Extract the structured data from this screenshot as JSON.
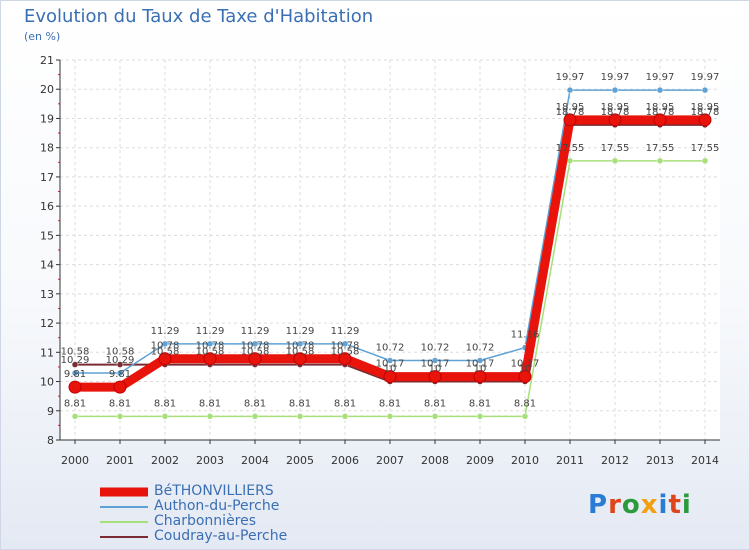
{
  "chart_data": {
    "type": "line",
    "title": "Evolution du Taux de Taxe d'Habitation",
    "subtitle": "(en %)",
    "x": [
      "2000",
      "2001",
      "2002",
      "2003",
      "2004",
      "2005",
      "2006",
      "2007",
      "2008",
      "2009",
      "2010",
      "2011",
      "2012",
      "2013",
      "2014"
    ],
    "ylim": [
      8,
      21
    ],
    "yticks": [
      8,
      9,
      10,
      11,
      12,
      13,
      14,
      15,
      16,
      17,
      18,
      19,
      20,
      21
    ],
    "grid": true,
    "series": [
      {
        "name": "BéTHONVILLIERS",
        "color": "#e8140c",
        "values": [
          9.81,
          9.81,
          10.78,
          10.78,
          10.78,
          10.78,
          10.78,
          10.17,
          10.17,
          10.17,
          10.17,
          18.95,
          18.95,
          18.95,
          18.95
        ]
      },
      {
        "name": "Authon-du-Perche",
        "color": "#5ea2d6",
        "values": [
          10.29,
          10.29,
          11.29,
          11.29,
          11.29,
          11.29,
          11.29,
          10.72,
          10.72,
          10.72,
          11.16,
          19.97,
          19.97,
          19.97,
          19.97
        ]
      },
      {
        "name": "Charbonnières",
        "color": "#a6e07a",
        "values": [
          8.81,
          8.81,
          8.81,
          8.81,
          8.81,
          8.81,
          8.81,
          8.81,
          8.81,
          8.81,
          8.81,
          17.55,
          17.55,
          17.55,
          17.55
        ]
      },
      {
        "name": "Coudray-au-Perche",
        "color": "#7a2b33",
        "values": [
          10.58,
          10.58,
          10.58,
          10.58,
          10.58,
          10.58,
          10.58,
          10,
          10,
          10,
          10,
          18.78,
          18.78,
          18.78,
          18.78
        ]
      }
    ]
  },
  "logo_text": "Proxiti",
  "colors": {
    "title": "#3a6fb4",
    "axis": "#333333",
    "grid": "#dddddd",
    "tickmark": "#cc2244"
  }
}
